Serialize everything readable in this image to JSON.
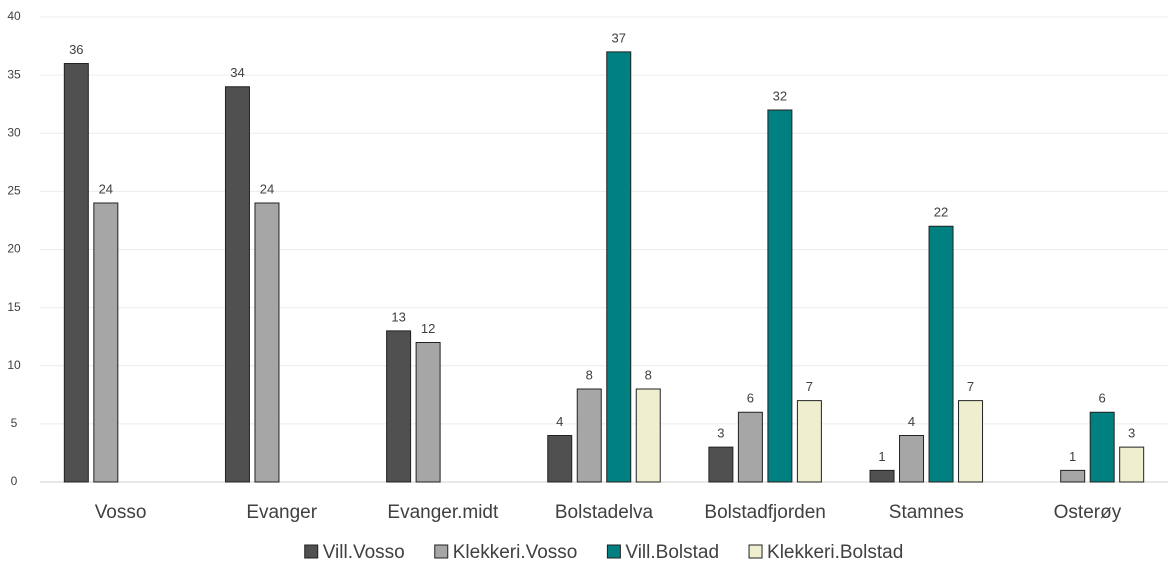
{
  "chart_data": {
    "type": "bar",
    "categories": [
      "Vosso",
      "Evanger",
      "Evanger.midt",
      "Bolstadelva",
      "Bolstadfjorden",
      "Stamnes",
      "Osterøy"
    ],
    "series": [
      {
        "name": "Vill.Vosso",
        "color": "#505050",
        "values": [
          36,
          34,
          13,
          4,
          3,
          1,
          null
        ]
      },
      {
        "name": "Klekkeri.Vosso",
        "color": "#a6a6a6",
        "values": [
          24,
          24,
          12,
          8,
          6,
          4,
          1
        ]
      },
      {
        "name": "Vill.Bolstad",
        "color": "#008080",
        "values": [
          null,
          null,
          null,
          37,
          32,
          22,
          6
        ]
      },
      {
        "name": "Klekkeri.Bolstad",
        "color": "#efefcf",
        "values": [
          null,
          null,
          null,
          8,
          7,
          7,
          3
        ]
      }
    ],
    "ylim": [
      0,
      40
    ],
    "yticks": [
      0,
      5,
      10,
      15,
      20,
      25,
      30,
      35,
      40
    ],
    "grid": true,
    "legend": "bottom"
  }
}
